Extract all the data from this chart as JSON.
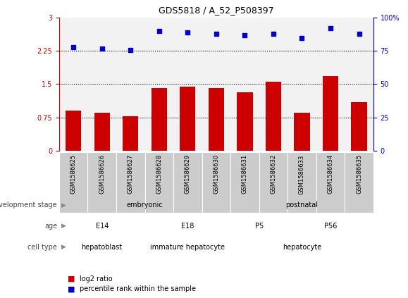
{
  "title": "GDS5818 / A_52_P508397",
  "samples": [
    "GSM1586625",
    "GSM1586626",
    "GSM1586627",
    "GSM1586628",
    "GSM1586629",
    "GSM1586630",
    "GSM1586631",
    "GSM1586632",
    "GSM1586633",
    "GSM1586634",
    "GSM1586635"
  ],
  "log2_ratio": [
    0.9,
    0.85,
    0.78,
    1.42,
    1.44,
    1.42,
    1.32,
    1.55,
    0.85,
    1.68,
    1.1
  ],
  "percentile": [
    78,
    77,
    76,
    90,
    89,
    88,
    87,
    88,
    85,
    92,
    88
  ],
  "bar_color": "#cc0000",
  "dot_color": "#0000cc",
  "ylim_left": [
    0,
    3
  ],
  "ylim_right": [
    0,
    100
  ],
  "yticks_left": [
    0,
    0.75,
    1.5,
    2.25,
    3
  ],
  "yticks_right": [
    0,
    25,
    50,
    75,
    100
  ],
  "hlines": [
    0.75,
    1.5,
    2.25
  ],
  "dev_stage": [
    {
      "label": "embryonic",
      "start": 0,
      "end": 5,
      "color": "#99ee99"
    },
    {
      "label": "postnatal",
      "start": 6,
      "end": 10,
      "color": "#44cc44"
    }
  ],
  "age": [
    {
      "label": "E14",
      "start": 0,
      "end": 2,
      "color": "#ccccff"
    },
    {
      "label": "E18",
      "start": 3,
      "end": 5,
      "color": "#aaaaee"
    },
    {
      "label": "P5",
      "start": 6,
      "end": 7,
      "color": "#9999cc"
    },
    {
      "label": "P56",
      "start": 8,
      "end": 10,
      "color": "#7777bb"
    }
  ],
  "cell_type": [
    {
      "label": "hepatoblast",
      "start": 0,
      "end": 2,
      "color": "#ffcccc"
    },
    {
      "label": "immature hepatocyte",
      "start": 3,
      "end": 5,
      "color": "#ffaaaa"
    },
    {
      "label": "hepatocyte",
      "start": 6,
      "end": 10,
      "color": "#ee8888"
    }
  ],
  "row_labels": [
    "development stage",
    "age",
    "cell type"
  ],
  "legend_log2": "log2 ratio",
  "legend_pct": "percentile rank within the sample",
  "chart_bg": "#f2f2f2",
  "tick_bg": "#cccccc"
}
